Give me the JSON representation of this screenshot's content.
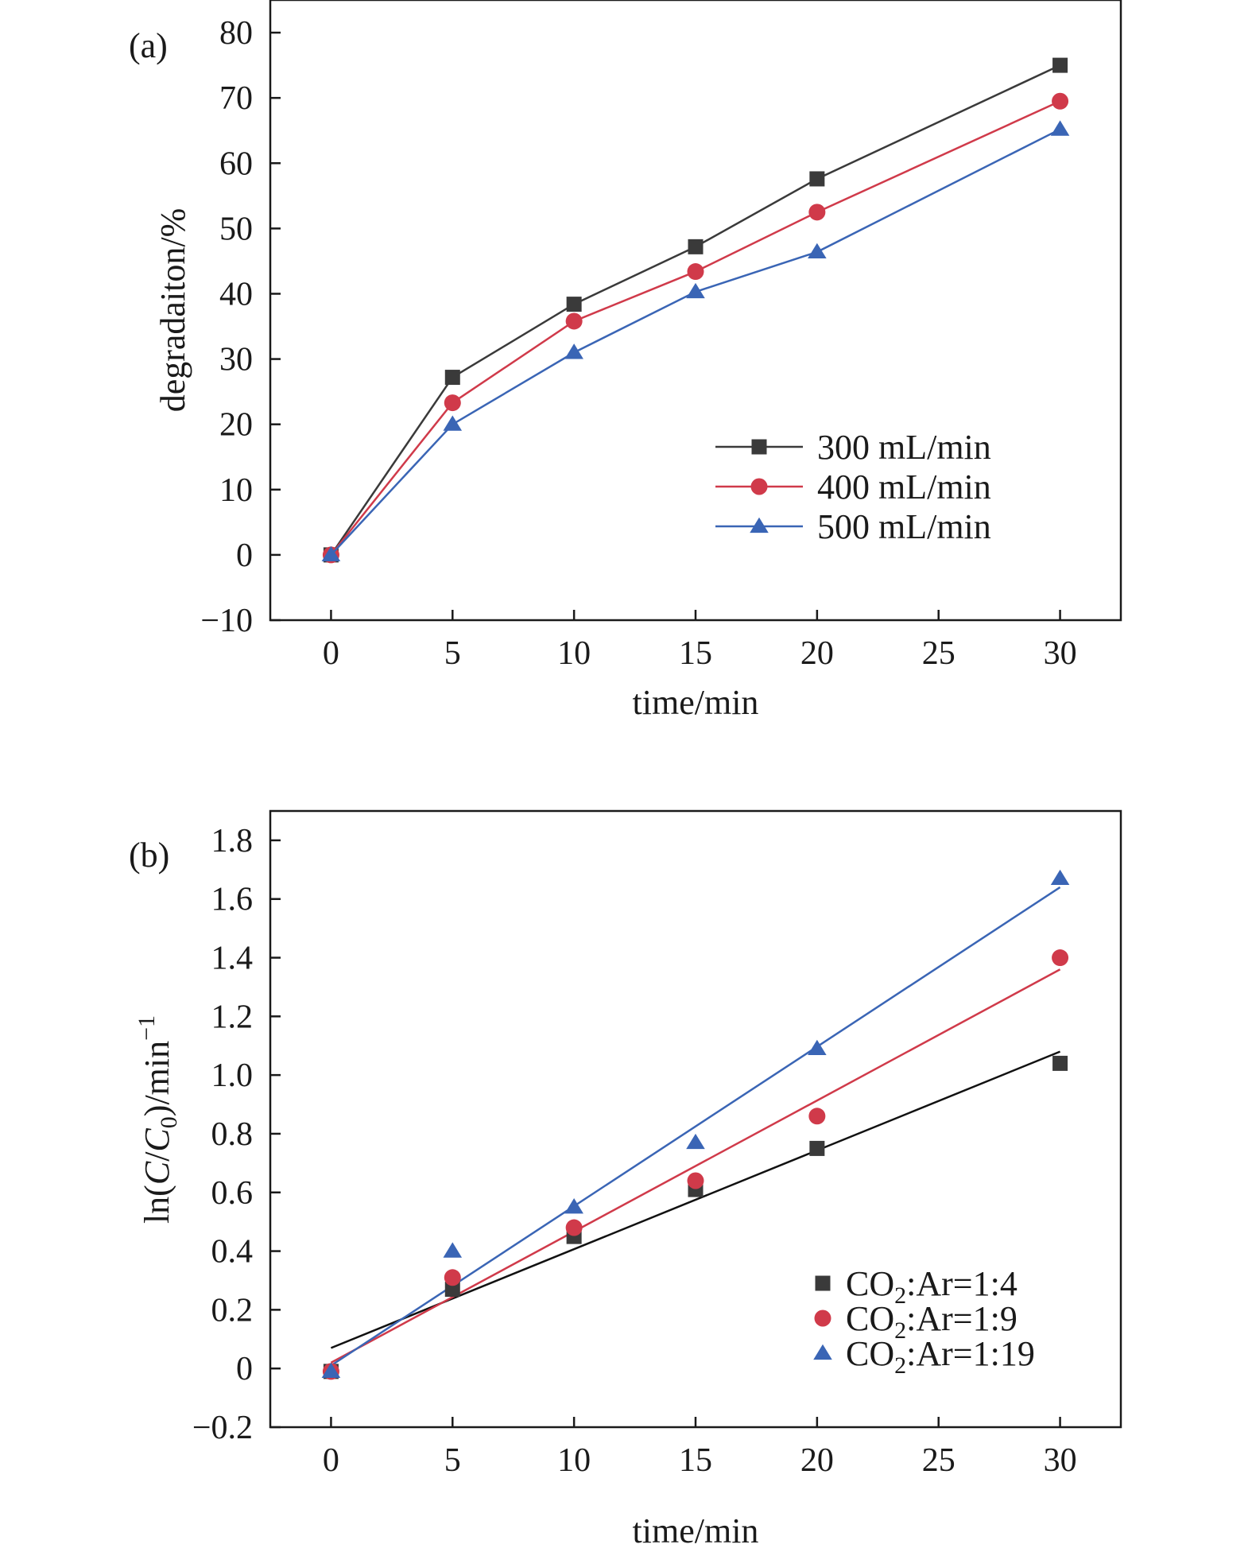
{
  "chart_data": [
    {
      "panel": "(a)",
      "type": "line",
      "xlabel": "time/min",
      "ylabel": "degradaiton/%",
      "xlim": [
        -2.5,
        32.5
      ],
      "ylim": [
        -10,
        85
      ],
      "xticks": [
        0,
        5,
        10,
        15,
        20,
        25,
        30
      ],
      "xtick_labels": [
        "0",
        "5",
        "10",
        "15",
        "20",
        "25",
        "30"
      ],
      "yticks": [
        -10,
        0,
        10,
        20,
        30,
        40,
        50,
        60,
        70,
        80
      ],
      "ytick_labels": [
        "−10",
        "0",
        "10",
        "20",
        "30",
        "40",
        "50",
        "60",
        "70",
        "80"
      ],
      "x": [
        0,
        5,
        10,
        15,
        20,
        30
      ],
      "legend_position": "right",
      "series": [
        {
          "name": "300 mL/min",
          "color": "#3a3a3a",
          "marker": "square",
          "values": [
            0,
            27.2,
            38.4,
            47.2,
            57.6,
            75.0
          ]
        },
        {
          "name": "400 mL/min",
          "color": "#d03a4a",
          "marker": "circle",
          "values": [
            0,
            23.3,
            35.8,
            43.4,
            52.5,
            69.5
          ]
        },
        {
          "name": "500 mL/min",
          "color": "#3a65b5",
          "marker": "triangle",
          "values": [
            0,
            20.0,
            31.0,
            40.3,
            46.4,
            65.2
          ]
        }
      ]
    },
    {
      "panel": "(b)",
      "type": "scatter",
      "xlabel": "time/min",
      "ylabel_prefix": "ln(",
      "ylabel_c": "C",
      "ylabel_slash": "/",
      "ylabel_c0": "C",
      "ylabel_c0_sub": "0",
      "ylabel_suffix": ")/min",
      "ylabel_sup": "−1",
      "xlim": [
        -2.5,
        32.5
      ],
      "ylim": [
        -0.2,
        1.9
      ],
      "xticks": [
        0,
        5,
        10,
        15,
        20,
        25,
        30
      ],
      "xtick_labels": [
        "0",
        "5",
        "10",
        "15",
        "20",
        "25",
        "30"
      ],
      "yticks": [
        -0.2,
        0,
        0.2,
        0.4,
        0.6,
        0.8,
        1.0,
        1.2,
        1.4,
        1.6,
        1.8
      ],
      "ytick_labels": [
        "−0.2",
        "0",
        "0.2",
        "0.4",
        "0.6",
        "0.8",
        "1.0",
        "1.2",
        "1.4",
        "1.6",
        "1.8"
      ],
      "x": [
        0,
        5,
        10,
        15,
        20,
        30
      ],
      "legend_position": "bottom-right",
      "series": [
        {
          "name_pre": "CO",
          "name_sub": "2",
          "name_post": ":Ar=1:4",
          "color": "#3a3a3a",
          "fit_color": "#111111",
          "marker": "square",
          "values": [
            -0.01,
            0.27,
            0.45,
            0.61,
            0.75,
            1.04
          ],
          "fit": [
            [
              0,
              0.07
            ],
            [
              30,
              1.08
            ]
          ]
        },
        {
          "name_pre": "CO",
          "name_sub": "2",
          "name_post": ":Ar=1:9",
          "color": "#d03a4a",
          "fit_color": "#d03a4a",
          "marker": "circle",
          "values": [
            -0.01,
            0.31,
            0.48,
            0.64,
            0.86,
            1.4
          ],
          "fit": [
            [
              0,
              0.02
            ],
            [
              30,
              1.36
            ]
          ]
        },
        {
          "name_pre": "CO",
          "name_sub": "2",
          "name_post": ":Ar=1:19",
          "color": "#3a65b5",
          "fit_color": "#3a65b5",
          "marker": "triangle",
          "values": [
            -0.01,
            0.4,
            0.55,
            0.77,
            1.09,
            1.67
          ],
          "fit": [
            [
              0,
              0.01
            ],
            [
              30,
              1.64
            ]
          ]
        }
      ]
    }
  ]
}
